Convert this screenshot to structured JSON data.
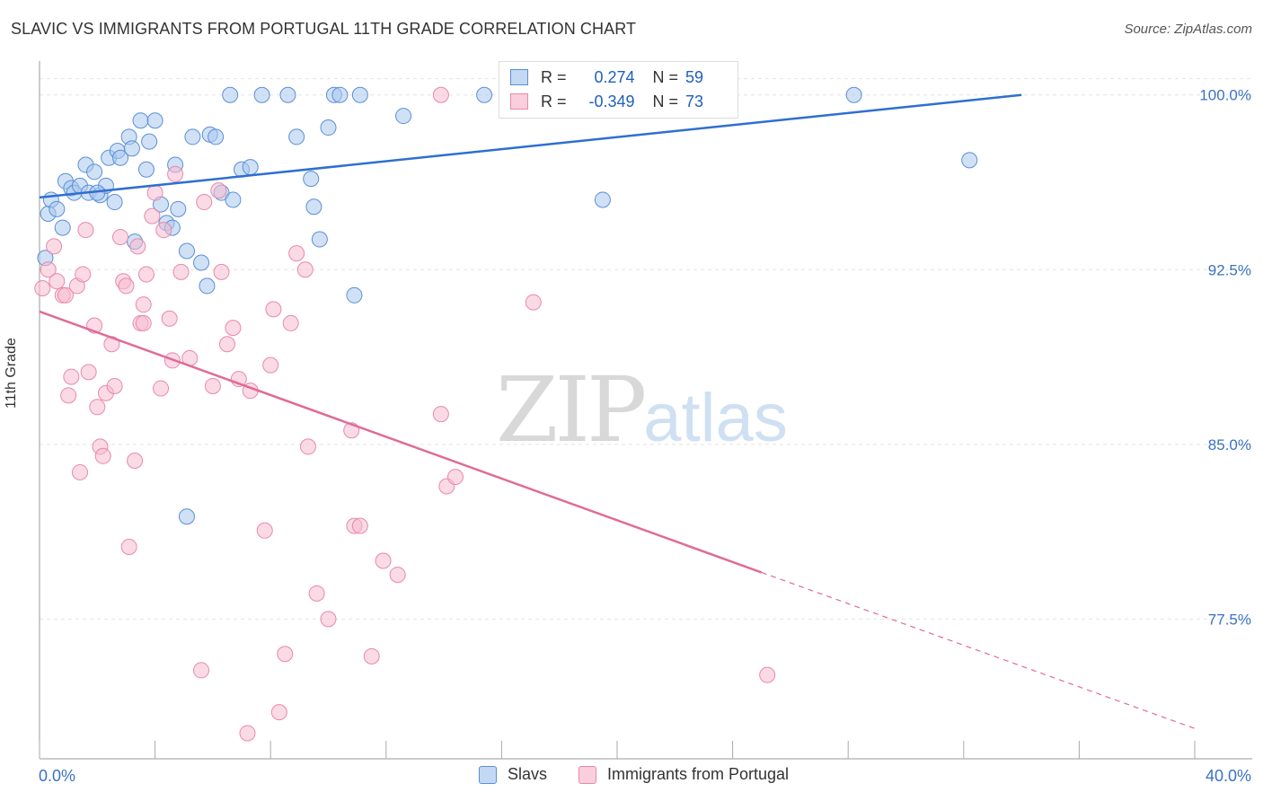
{
  "header": {
    "title": "SLAVIC VS IMMIGRANTS FROM PORTUGAL 11TH GRADE CORRELATION CHART",
    "source": "Source: ZipAtlas.com"
  },
  "watermark": {
    "part1": "ZIP",
    "part2": "atlas"
  },
  "stats": {
    "row1": {
      "r_label": "R =",
      "r_value": "0.274",
      "n_label": "N =",
      "n_value": "59"
    },
    "row2": {
      "r_label": "R =",
      "r_value": "-0.349",
      "n_label": "N =",
      "n_value": "73"
    }
  },
  "legend": {
    "item1": "Slavs",
    "item2": "Immigrants from Portugal"
  },
  "colors": {
    "slavs_fill": "#a9c8ef",
    "slavs_stroke": "#5b8fd6",
    "slavs_line": "#2f6fd0",
    "portugal_fill": "#f6bcd0",
    "portugal_stroke": "#e889aa",
    "portugal_line": "#e06b97",
    "tick_label": "#3a72c4",
    "grid": "#e4e4e4"
  },
  "chart_data": {
    "type": "scatter",
    "title": "SLAVIC VS IMMIGRANTS FROM PORTUGAL 11TH GRADE CORRELATION CHART",
    "xlabel": "",
    "ylabel": "11th Grade",
    "xlim": [
      0,
      40
    ],
    "ylim": [
      71.5,
      101.3
    ],
    "x_tick_labels": [
      {
        "value": 0,
        "label": "0.0%"
      },
      {
        "value": 40,
        "label": "40.0%"
      }
    ],
    "y_tick_labels": [
      {
        "value": 100.0,
        "label": "100.0%"
      },
      {
        "value": 92.5,
        "label": "92.5%"
      },
      {
        "value": 85.0,
        "label": "85.0%"
      },
      {
        "value": 77.5,
        "label": "77.5%"
      }
    ],
    "grid": true,
    "legend_position": "bottom-center",
    "series": [
      {
        "name": "Slavs",
        "r": 0.274,
        "n": 59,
        "trend": {
          "x0": 0,
          "y0": 95.6,
          "x1": 34,
          "y1": 100.0
        },
        "points": [
          [
            0.2,
            93.0
          ],
          [
            0.3,
            94.9
          ],
          [
            0.4,
            95.5
          ],
          [
            0.6,
            95.1
          ],
          [
            0.8,
            94.3
          ],
          [
            0.9,
            96.3
          ],
          [
            1.1,
            96.0
          ],
          [
            1.2,
            95.8
          ],
          [
            1.4,
            96.1
          ],
          [
            1.6,
            97.0
          ],
          [
            1.7,
            95.8
          ],
          [
            1.9,
            96.7
          ],
          [
            2.1,
            95.7
          ],
          [
            2.3,
            96.1
          ],
          [
            2.4,
            97.3
          ],
          [
            2.6,
            95.4
          ],
          [
            2.7,
            97.6
          ],
          [
            2.8,
            97.3
          ],
          [
            3.1,
            98.2
          ],
          [
            3.2,
            97.7
          ],
          [
            3.5,
            98.9
          ],
          [
            3.7,
            96.8
          ],
          [
            3.8,
            98.0
          ],
          [
            4.0,
            98.9
          ],
          [
            4.2,
            95.3
          ],
          [
            4.4,
            94.5
          ],
          [
            4.6,
            94.3
          ],
          [
            4.7,
            97.0
          ],
          [
            4.8,
            95.1
          ],
          [
            5.1,
            93.3
          ],
          [
            5.3,
            98.2
          ],
          [
            5.6,
            92.8
          ],
          [
            5.8,
            91.8
          ],
          [
            5.9,
            98.3
          ],
          [
            6.1,
            98.2
          ],
          [
            6.3,
            95.8
          ],
          [
            6.7,
            95.5
          ],
          [
            7.0,
            96.8
          ],
          [
            7.3,
            96.9
          ],
          [
            6.6,
            100.0
          ],
          [
            7.7,
            100.0
          ],
          [
            8.6,
            100.0
          ],
          [
            8.9,
            98.2
          ],
          [
            9.4,
            96.4
          ],
          [
            9.5,
            95.2
          ],
          [
            9.7,
            93.8
          ],
          [
            10.0,
            98.6
          ],
          [
            10.2,
            100.0
          ],
          [
            10.4,
            100.0
          ],
          [
            10.9,
            91.4
          ],
          [
            11.1,
            100.0
          ],
          [
            12.6,
            99.1
          ],
          [
            15.4,
            100.0
          ],
          [
            19.5,
            95.5
          ],
          [
            28.2,
            100.0
          ],
          [
            32.2,
            97.2
          ],
          [
            3.3,
            93.7
          ],
          [
            5.1,
            81.9
          ],
          [
            2.0,
            95.8
          ]
        ]
      },
      {
        "name": "Immigrants from Portugal",
        "r": -0.349,
        "n": 73,
        "trend": {
          "x0": 0,
          "y0": 90.7,
          "x1": 25,
          "y1": 79.5,
          "dash_x1": 40,
          "dash_y1": 72.8
        },
        "points": [
          [
            0.1,
            91.7
          ],
          [
            0.3,
            92.5
          ],
          [
            0.5,
            93.5
          ],
          [
            0.6,
            92.0
          ],
          [
            0.8,
            91.4
          ],
          [
            0.9,
            91.4
          ],
          [
            1.0,
            87.1
          ],
          [
            1.1,
            87.9
          ],
          [
            1.3,
            91.8
          ],
          [
            1.4,
            83.8
          ],
          [
            1.5,
            92.3
          ],
          [
            1.6,
            94.2
          ],
          [
            1.7,
            88.1
          ],
          [
            1.9,
            90.1
          ],
          [
            2.0,
            86.6
          ],
          [
            2.1,
            84.9
          ],
          [
            2.2,
            84.5
          ],
          [
            2.3,
            87.2
          ],
          [
            2.5,
            89.3
          ],
          [
            2.6,
            87.5
          ],
          [
            2.8,
            93.9
          ],
          [
            2.9,
            92.0
          ],
          [
            3.0,
            91.8
          ],
          [
            3.1,
            80.6
          ],
          [
            3.3,
            84.3
          ],
          [
            3.4,
            93.5
          ],
          [
            3.5,
            90.2
          ],
          [
            3.6,
            91.0
          ],
          [
            3.7,
            92.3
          ],
          [
            3.9,
            94.8
          ],
          [
            4.0,
            95.8
          ],
          [
            4.2,
            87.4
          ],
          [
            4.3,
            94.2
          ],
          [
            4.5,
            90.4
          ],
          [
            4.6,
            88.6
          ],
          [
            4.7,
            96.6
          ],
          [
            4.9,
            92.4
          ],
          [
            5.2,
            88.7
          ],
          [
            5.6,
            75.3
          ],
          [
            5.7,
            95.4
          ],
          [
            6.0,
            87.5
          ],
          [
            6.2,
            95.9
          ],
          [
            6.3,
            92.4
          ],
          [
            6.5,
            89.3
          ],
          [
            6.7,
            90.0
          ],
          [
            6.9,
            87.8
          ],
          [
            7.2,
            72.6
          ],
          [
            7.3,
            87.3
          ],
          [
            7.8,
            81.3
          ],
          [
            8.0,
            88.4
          ],
          [
            8.1,
            90.8
          ],
          [
            8.3,
            73.5
          ],
          [
            8.5,
            76.0
          ],
          [
            8.7,
            90.2
          ],
          [
            8.9,
            93.2
          ],
          [
            9.2,
            92.5
          ],
          [
            9.3,
            84.9
          ],
          [
            9.6,
            78.6
          ],
          [
            10.0,
            77.5
          ],
          [
            10.8,
            85.6
          ],
          [
            10.9,
            81.5
          ],
          [
            11.1,
            81.5
          ],
          [
            11.5,
            75.9
          ],
          [
            11.9,
            80.0
          ],
          [
            12.4,
            79.4
          ],
          [
            13.9,
            86.3
          ],
          [
            14.1,
            83.2
          ],
          [
            14.4,
            83.6
          ],
          [
            13.9,
            100.0
          ],
          [
            16.6,
            100.0
          ],
          [
            17.1,
            91.1
          ],
          [
            25.2,
            75.1
          ],
          [
            3.6,
            90.2
          ]
        ]
      }
    ]
  }
}
